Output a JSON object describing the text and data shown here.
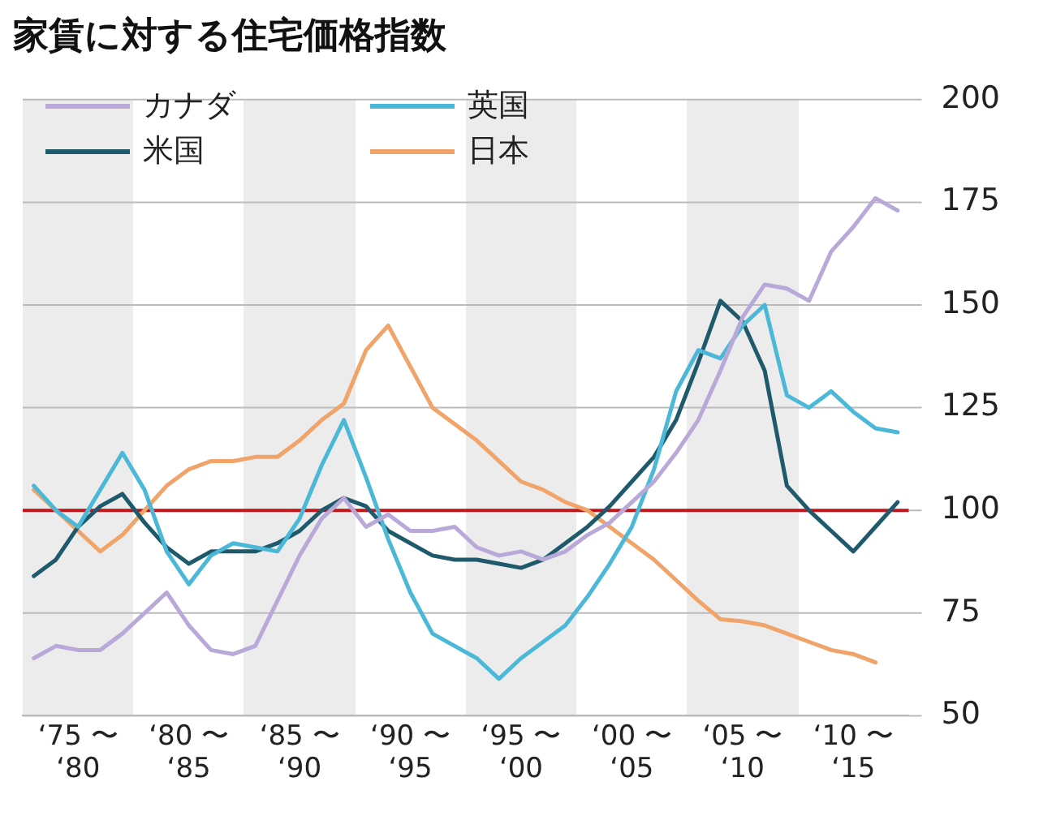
{
  "chart_data": {
    "type": "line",
    "title": "家賃に対する住宅価格指数",
    "categories": [
      null,
      null,
      "‘75 〜 ‘80",
      null,
      null,
      null,
      null,
      "‘80 〜 ‘85",
      null,
      null,
      null,
      null,
      "‘85 〜 ‘90",
      null,
      null,
      null,
      null,
      "‘90 〜 ‘95",
      null,
      null,
      null,
      null,
      "‘95 〜 ‘00",
      null,
      null,
      null,
      null,
      "‘00 〜 ‘05",
      null,
      null,
      null,
      null,
      "‘05 〜 ‘10",
      null,
      null,
      null,
      null,
      "‘10 〜 ‘15",
      null,
      null
    ],
    "series": [
      {
        "name": "カナダ",
        "color": "#b9a9d9",
        "values": [
          64,
          67,
          66,
          66,
          70,
          75,
          80,
          72,
          66,
          65,
          67,
          78,
          89,
          98,
          103,
          96,
          99,
          95,
          95,
          96,
          91,
          89,
          90,
          88,
          90,
          94,
          97,
          102,
          107,
          114,
          122,
          134,
          147,
          155,
          154,
          151,
          163,
          169,
          176,
          173
        ]
      },
      {
        "name": "英国",
        "color": "#4bb8d8",
        "values": [
          106,
          100,
          96,
          105,
          114,
          105,
          90,
          82,
          89,
          92,
          91,
          90,
          98,
          111,
          122,
          108,
          93,
          80,
          70,
          67,
          64,
          59,
          64,
          68,
          72,
          79,
          87,
          96,
          110,
          129,
          139,
          137,
          145,
          150,
          128,
          125,
          129,
          124,
          120,
          119
        ]
      },
      {
        "name": "米国",
        "color": "#1e5a6c",
        "values": [
          84,
          88,
          96,
          101,
          104,
          97,
          91,
          87,
          90,
          90,
          90,
          92,
          95,
          100,
          103,
          101,
          95,
          92,
          89,
          88,
          88,
          87,
          86,
          88,
          92,
          96,
          101,
          107,
          113,
          122,
          136,
          151,
          146,
          134,
          106,
          100,
          95,
          90,
          96,
          102
        ]
      },
      {
        "name": "日本",
        "color": "#f0a46a",
        "values": [
          105,
          100,
          95,
          90,
          94,
          100,
          106,
          110,
          112,
          112,
          113,
          113,
          117,
          122,
          126,
          139,
          145,
          135,
          125,
          121,
          117,
          112,
          107,
          105,
          102,
          100,
          96,
          92,
          88,
          83,
          78,
          73.5,
          73,
          72,
          70,
          68,
          66,
          65,
          63,
          null
        ]
      }
    ],
    "ylim": [
      50,
      200
    ],
    "yticks": [
      50,
      75,
      100,
      125,
      150,
      175,
      200
    ],
    "grid": "y",
    "legend": "top left",
    "marker": "none",
    "line_style": "solid",
    "ref_lines": [
      {
        "axis": "y",
        "value": 100,
        "color": "#c0151b"
      }
    ]
  }
}
